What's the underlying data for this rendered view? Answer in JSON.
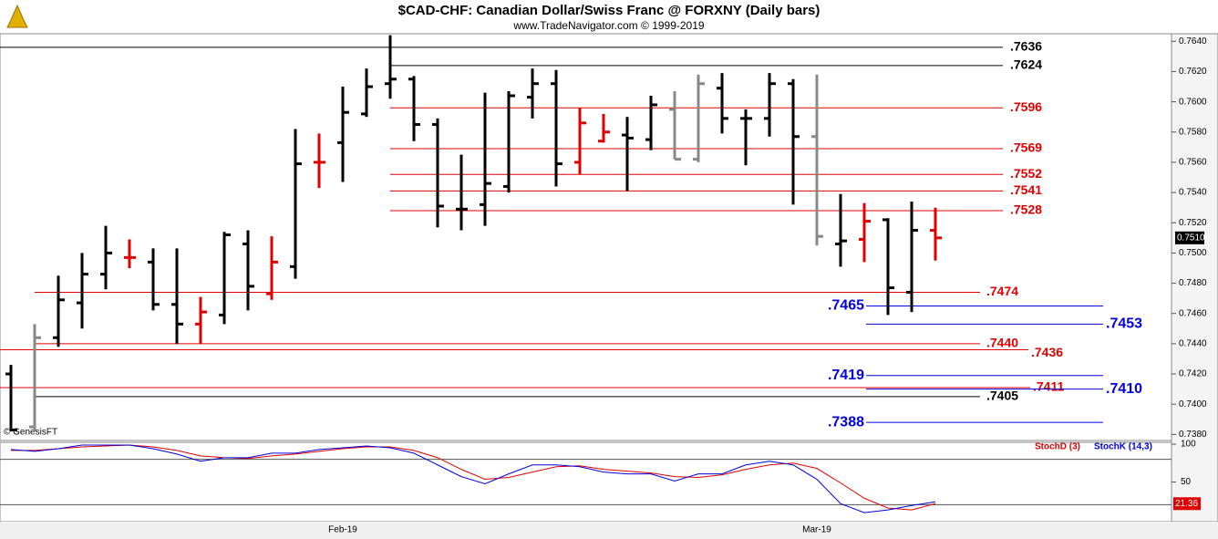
{
  "chart_data": [
    {
      "type": "ohlc",
      "title": "$CAD-CHF:  Canadian Dollar/Swiss Franc @ FORXNY  (Daily bars)",
      "subtitle": "www.TradeNavigator.com © 1999-2019",
      "source": "© GenesisFT",
      "categories": [
        null,
        null,
        null,
        null,
        null,
        null,
        null,
        null,
        null,
        null,
        null,
        null,
        null,
        null,
        "Feb-19",
        null,
        null,
        null,
        null,
        null,
        null,
        null,
        null,
        null,
        null,
        null,
        null,
        null,
        null,
        null,
        null,
        null,
        null,
        null,
        "Mar-19",
        null,
        null,
        null,
        null,
        null
      ],
      "open": [
        0.742,
        0.7385,
        0.7444,
        0.7467,
        0.7486,
        0.7497,
        0.7494,
        0.7466,
        0.7453,
        0.7459,
        0.7506,
        0.7473,
        0.7491,
        0.756,
        0.7573,
        0.7592,
        0.7612,
        0.7615,
        0.7585,
        0.7529,
        0.7532,
        0.7544,
        0.7603,
        0.7612,
        0.756,
        0.7574,
        0.7578,
        0.7575,
        0.7595,
        0.7562,
        0.7609,
        0.7589,
        0.7589,
        0.7612,
        0.7577,
        0.7506,
        0.7509,
        0.7522,
        0.7474,
        0.7515
      ],
      "high": [
        0.7426,
        0.7453,
        0.7485,
        0.75,
        0.7518,
        0.7509,
        0.7503,
        0.7503,
        0.7471,
        0.7514,
        0.7515,
        0.7511,
        0.7582,
        0.7579,
        0.761,
        0.7622,
        0.7644,
        0.7617,
        0.7589,
        0.7565,
        0.7606,
        0.7607,
        0.7622,
        0.7621,
        0.7596,
        0.7592,
        0.759,
        0.7604,
        0.7607,
        0.7618,
        0.7619,
        0.7595,
        0.7619,
        0.7615,
        0.7618,
        0.7539,
        0.7533,
        0.7523,
        0.7534,
        0.753
      ],
      "low": [
        0.7382,
        0.7382,
        0.7438,
        0.745,
        0.7476,
        0.749,
        0.7462,
        0.744,
        0.744,
        0.7453,
        0.7462,
        0.7469,
        0.7483,
        0.7543,
        0.7547,
        0.759,
        0.7602,
        0.7574,
        0.7517,
        0.7515,
        0.7518,
        0.754,
        0.7589,
        0.7544,
        0.7552,
        0.7573,
        0.7541,
        0.7568,
        0.7562,
        0.756,
        0.7579,
        0.7558,
        0.7577,
        0.7532,
        0.7505,
        0.7491,
        0.7494,
        0.7459,
        0.7461,
        0.7495
      ],
      "close": [
        0.7383,
        0.7444,
        0.7469,
        0.7486,
        0.75,
        0.7497,
        0.7466,
        0.7453,
        0.7461,
        0.7512,
        0.7478,
        0.7494,
        0.7559,
        0.756,
        0.7593,
        0.761,
        0.7615,
        0.7585,
        0.7531,
        0.7529,
        0.7546,
        0.7604,
        0.7612,
        0.7559,
        0.7586,
        0.758,
        0.7576,
        0.7598,
        0.7562,
        0.7612,
        0.7589,
        0.7589,
        0.7612,
        0.7577,
        0.7511,
        0.7508,
        0.7521,
        0.7477,
        0.7515,
        0.751
      ],
      "colors": [
        "#000000",
        "#888888",
        "#000000",
        "#000000",
        "#000000",
        "#e00000",
        "#000000",
        "#000000",
        "#e00000",
        "#000000",
        "#000000",
        "#e00000",
        "#000000",
        "#e00000",
        "#000000",
        "#000000",
        "#000000",
        "#000000",
        "#000000",
        "#000000",
        "#000000",
        "#000000",
        "#000000",
        "#000000",
        "#e00000",
        "#e00000",
        "#000000",
        "#000000",
        "#888888",
        "#888888",
        "#000000",
        "#000000",
        "#000000",
        "#000000",
        "#888888",
        "#000000",
        "#e00000",
        "#000000",
        "#000000",
        "#e00000"
      ],
      "last_label": "0.7510",
      "ylim": [
        0.7376,
        0.7645
      ],
      "yticks": [
        {
          "value": 0.764,
          "label": "0.7640"
        },
        {
          "value": 0.762,
          "label": "0.7620"
        },
        {
          "value": 0.76,
          "label": "0.7600"
        },
        {
          "value": 0.758,
          "label": "0.7580"
        },
        {
          "value": 0.756,
          "label": "0.7560"
        },
        {
          "value": 0.754,
          "label": "0.7540"
        },
        {
          "value": 0.752,
          "label": "0.7520"
        },
        {
          "value": 0.75,
          "label": "0.7500"
        },
        {
          "value": 0.748,
          "label": "0.7480"
        },
        {
          "value": 0.746,
          "label": "0.7460"
        },
        {
          "value": 0.744,
          "label": "0.7440"
        },
        {
          "value": 0.742,
          "label": "0.7420"
        },
        {
          "value": 0.74,
          "label": "0.7400"
        },
        {
          "value": 0.738,
          "label": "0.7380"
        }
      ],
      "levels": [
        {
          "value": 0.7636,
          "label": ".7636",
          "color": "#000000"
        },
        {
          "value": 0.7624,
          "label": ".7624",
          "color": "#000000"
        },
        {
          "value": 0.7596,
          "label": ".7596",
          "color": "#e00000"
        },
        {
          "value": 0.7569,
          "label": ".7569",
          "color": "#e00000"
        },
        {
          "value": 0.7552,
          "label": ".7552",
          "color": "#e00000"
        },
        {
          "value": 0.7541,
          "label": ".7541",
          "color": "#e00000"
        },
        {
          "value": 0.7528,
          "label": ".7528",
          "color": "#e00000"
        },
        {
          "value": 0.7474,
          "label": ".7474",
          "color": "#e00000"
        },
        {
          "value": 0.7465,
          "label": ".7465",
          "color": "#0000e0"
        },
        {
          "value": 0.7453,
          "label": ".7453",
          "color": "#0000e0"
        },
        {
          "value": 0.744,
          "label": ".7440",
          "color": "#e00000"
        },
        {
          "value": 0.7436,
          "label": ".7436",
          "color": "#e00000"
        },
        {
          "value": 0.7419,
          "label": ".7419",
          "color": "#0000e0"
        },
        {
          "value": 0.7411,
          "label": ".7411",
          "color": "#e00000"
        },
        {
          "value": 0.741,
          "label": ".7410",
          "color": "#0000e0"
        },
        {
          "value": 0.7405,
          "label": ".7405",
          "color": "#000000"
        },
        {
          "value": 0.7388,
          "label": ".7388",
          "color": "#0000e0"
        }
      ]
    },
    {
      "type": "line",
      "series": [
        {
          "name": "StochD (3)",
          "color": "#e00000",
          "values": [
            91.7,
            91.7,
            94.0,
            96.4,
            97.6,
            98.8,
            96.4,
            91.7,
            84.5,
            82.1,
            81.0,
            84.5,
            86.9,
            90.5,
            94.0,
            96.4,
            96.4,
            91.7,
            82.1,
            66.7,
            53.6,
            56.0,
            63.1,
            70.2,
            71.4,
            66.7,
            64.3,
            61.9,
            57.1,
            56.0,
            59.5,
            66.7,
            72.6,
            75.0,
            67.9,
            48.8,
            28.6,
            15.5,
            13.1,
            21.36
          ]
        },
        {
          "name": "StochK (14,3)",
          "color": "#0000e0",
          "values": [
            92.9,
            90.5,
            94.0,
            98.8,
            98.8,
            98.8,
            94.0,
            86.9,
            77.4,
            82.1,
            82.1,
            88.1,
            88.1,
            92.9,
            95.2,
            97.6,
            95.2,
            88.1,
            72.6,
            57.1,
            47.6,
            60.7,
            72.6,
            72.6,
            70.2,
            63.1,
            60.7,
            60.7,
            51.2,
            60.7,
            60.7,
            72.6,
            77.4,
            72.6,
            53.6,
            21.4,
            9.5,
            13.1,
            19.0,
            23.8
          ]
        }
      ],
      "ylim": [
        0,
        100
      ],
      "yticks": [
        50,
        100
      ],
      "ref_lines": [
        80,
        20
      ]
    }
  ]
}
